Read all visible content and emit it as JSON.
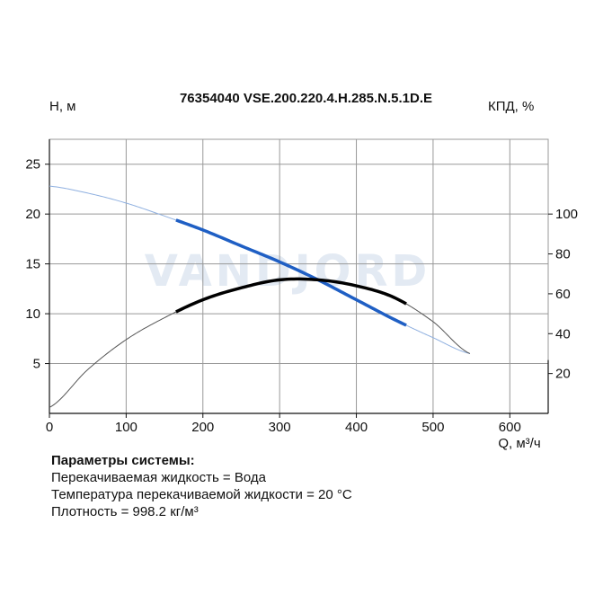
{
  "chart_data": {
    "type": "line",
    "title": "76354040 VSE.200.220.4.H.285.N.5.1D.E",
    "ylabel_left": "H, м",
    "ylabel_right": "КПД, %",
    "xlabel": "Q, м³/ч",
    "xlim": [
      0,
      650
    ],
    "ylim_left": [
      0,
      27.5
    ],
    "ylim_right": [
      0,
      137.5
    ],
    "x_ticks": [
      0,
      100,
      200,
      300,
      400,
      500,
      600
    ],
    "y_left_ticks": [
      5,
      10,
      15,
      20,
      25
    ],
    "y_right_ticks": [
      20,
      40,
      60,
      80,
      100
    ],
    "grid": true,
    "colors": {
      "head": "#1f5fc4",
      "efficiency": "#000000",
      "extension": "#555555"
    },
    "series": [
      {
        "name": "H",
        "axis": "left",
        "operating_range": [
          165,
          465
        ],
        "x": [
          0,
          50,
          100,
          150,
          200,
          250,
          300,
          350,
          400,
          450,
          500,
          548
        ],
        "y": [
          22.8,
          22.1,
          21.1,
          19.8,
          18.4,
          16.8,
          15.2,
          13.4,
          11.4,
          9.4,
          7.6,
          6.0
        ]
      },
      {
        "name": "КПД",
        "axis": "right",
        "operating_range": [
          165,
          465
        ],
        "x": [
          0,
          50,
          100,
          150,
          200,
          250,
          300,
          350,
          400,
          450,
          500,
          548
        ],
        "y": [
          3,
          22,
          37,
          48,
          57,
          63,
          67,
          67,
          64,
          58,
          46,
          30
        ]
      }
    ]
  },
  "params": {
    "header": "Параметры системы:",
    "lines": [
      "Перекачиваемая жидкость = Вода",
      "Температура перекачиваемой жидкости = 20 °C",
      "Плотность = 998.2 кг/м³"
    ]
  },
  "watermark": "VANDJORD"
}
